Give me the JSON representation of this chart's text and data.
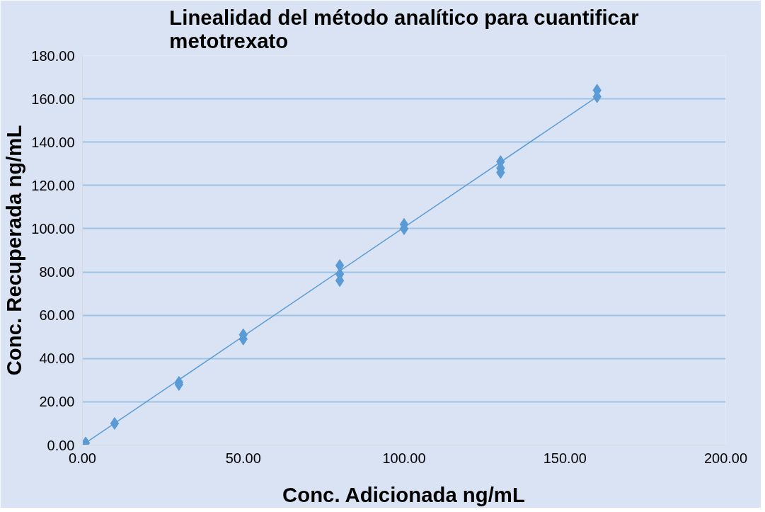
{
  "chart_data": {
    "type": "scatter",
    "title": "Linealidad del método analítico para cuantificar metotrexato",
    "xlabel": "Conc. Adicionada ng/mL",
    "ylabel": "Conc. Recuperada ng/mL",
    "xlim": [
      0,
      200
    ],
    "ylim": [
      0,
      180
    ],
    "xticks": [
      {
        "value": 0,
        "label": "0.00"
      },
      {
        "value": 50,
        "label": "50.00"
      },
      {
        "value": 100,
        "label": "100.00"
      },
      {
        "value": 150,
        "label": "150.00"
      },
      {
        "value": 200,
        "label": "200.00"
      }
    ],
    "yticks": [
      {
        "value": 0,
        "label": "0.00"
      },
      {
        "value": 20,
        "label": "20.00"
      },
      {
        "value": 40,
        "label": "40.00"
      },
      {
        "value": 60,
        "label": "60.00"
      },
      {
        "value": 80,
        "label": "80.00"
      },
      {
        "value": 100,
        "label": "100.00"
      },
      {
        "value": 120,
        "label": "120.00"
      },
      {
        "value": 140,
        "label": "140.00"
      },
      {
        "value": 160,
        "label": "160.00"
      },
      {
        "value": 180,
        "label": "180.00"
      }
    ],
    "grid": "y",
    "series": [
      {
        "marker": "diamond",
        "color": "#5b9bd5",
        "x": [
          1,
          10,
          30,
          30,
          50,
          50,
          80,
          80,
          80,
          100,
          100,
          130,
          130,
          130,
          160,
          160
        ],
        "values": [
          1,
          10,
          28,
          29,
          49,
          51,
          76,
          79,
          83,
          100,
          102,
          126,
          128,
          131,
          161,
          164
        ]
      },
      {
        "type": "line",
        "color": "#5b9bd5",
        "line_style": "solid",
        "x": [
          1,
          160
        ],
        "values": [
          1,
          161
        ]
      }
    ]
  }
}
